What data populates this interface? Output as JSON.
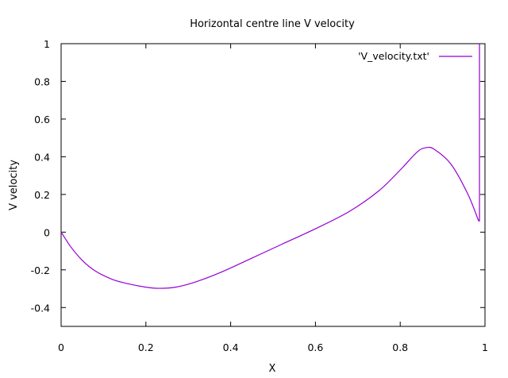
{
  "chart_data": {
    "type": "line",
    "title": "Horizontal centre line V velocity",
    "xlabel": "X",
    "ylabel": "V velocity",
    "xlim": [
      0,
      1
    ],
    "ylim": [
      -0.5,
      1
    ],
    "x_ticks": [
      0,
      0.2,
      0.4,
      0.6,
      0.8,
      1
    ],
    "x_tick_labels": [
      "0",
      "0.2",
      "0.4",
      "0.6",
      "0.8",
      "1"
    ],
    "y_ticks": [
      -0.4,
      -0.2,
      0,
      0.2,
      0.4,
      0.6,
      0.8,
      1
    ],
    "y_tick_labels": [
      "-0.4",
      "-0.2",
      "0",
      "0.2",
      "0.4",
      "0.6",
      "0.8",
      "1"
    ],
    "grid": false,
    "legend_position": "top-right",
    "series": [
      {
        "name": "'V_velocity.txt'",
        "color": "#9400d3",
        "x": [
          0,
          0.02,
          0.05,
          0.08,
          0.12,
          0.16,
          0.2,
          0.23,
          0.27,
          0.32,
          0.38,
          0.45,
          0.52,
          0.6,
          0.68,
          0.75,
          0.8,
          0.84,
          0.86,
          0.88,
          0.92,
          0.96,
          0.985,
          0.987,
          0.987
        ],
        "y": [
          0.0,
          -0.07,
          -0.15,
          -0.205,
          -0.25,
          -0.275,
          -0.292,
          -0.298,
          -0.292,
          -0.262,
          -0.21,
          -0.138,
          -0.065,
          0.018,
          0.11,
          0.22,
          0.33,
          0.425,
          0.448,
          0.44,
          0.36,
          0.2,
          0.06,
          0.06,
          1.0
        ]
      }
    ]
  }
}
